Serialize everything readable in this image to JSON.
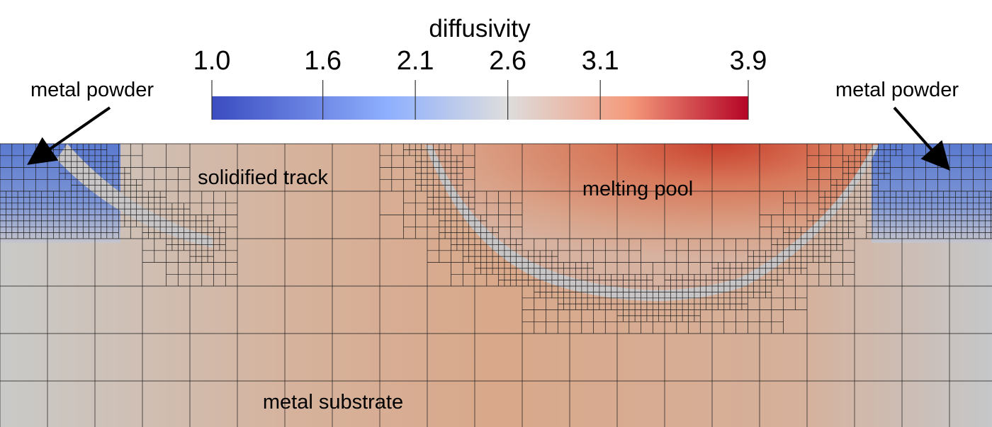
{
  "colorbar": {
    "title": "diffusivity",
    "ticks": [
      "1.0",
      "1.6",
      "2.1",
      "2.6",
      "3.1",
      "3.9"
    ],
    "tick_values": [
      1.0,
      1.6,
      2.1,
      2.6,
      3.1,
      3.9
    ],
    "range": [
      1.0,
      3.9
    ],
    "colormap": [
      "#3b4cc0",
      "#8fb0fe",
      "#dddddd",
      "#f49a7b",
      "#b40426"
    ]
  },
  "labels": {
    "powder_left": "metal powder",
    "powder_right": "metal powder",
    "solidified_track": "solidified track",
    "melting_pool": "melting pool",
    "substrate": "metal substrate"
  },
  "colors": {
    "powder": "#5b7fd4",
    "substrate": "#cfc8c0",
    "track": "#d8a88c",
    "interface": "#c7c5c6",
    "pool_hot": "#c8402e",
    "mesh_lines": "#000000"
  }
}
